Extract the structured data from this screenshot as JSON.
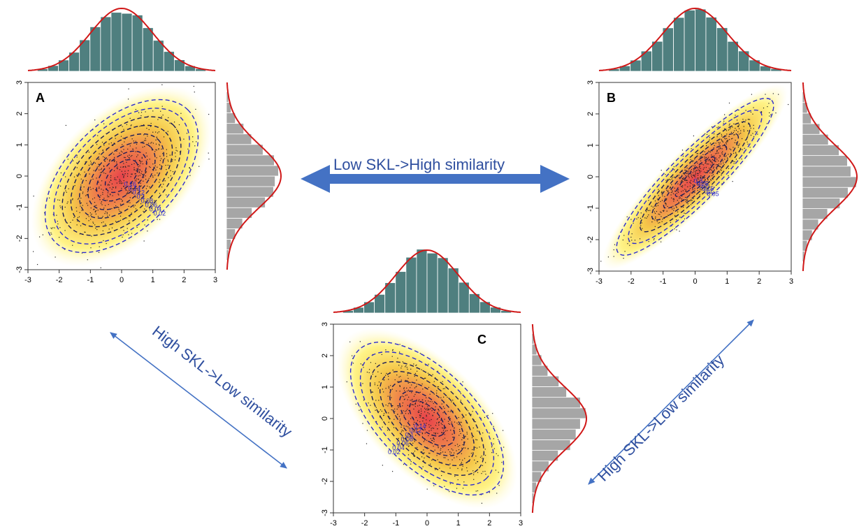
{
  "panels": [
    {
      "id": "A",
      "letter": "A",
      "rho": 0.5,
      "letter_pos": "top-left",
      "contour_labels": [
        "0.02",
        "0.04",
        "0.06",
        "0.08",
        "0.1",
        "0.12",
        "0.14",
        "0.16"
      ]
    },
    {
      "id": "B",
      "letter": "B",
      "rho": 0.9,
      "letter_pos": "top-left",
      "contour_labels": [
        "0.05",
        "0.1",
        "0.15",
        "0.2",
        "0.25",
        "0.3"
      ]
    },
    {
      "id": "C",
      "letter": "C",
      "rho": -0.6,
      "letter_pos": "top-right",
      "contour_labels": [
        "0.02",
        "0.04",
        "0.06",
        "0.08",
        "0.1",
        "0.12",
        "0.14"
      ]
    }
  ],
  "axis_ticks": [
    "-3",
    "-2",
    "-1",
    "0",
    "1",
    "2",
    "3"
  ],
  "arrows": {
    "top": "Low SKL->High similarity",
    "left": "High SKL->Low similarity",
    "right": "High SKL->Low similarity"
  },
  "colors": {
    "top_hist": "#4f7f7f",
    "side_hist": "#a6a6a6",
    "density_curve": "#d01818",
    "contour": "#2b2bd0",
    "arrow": "#4472c4",
    "label_text": "#2f4f9f"
  }
}
